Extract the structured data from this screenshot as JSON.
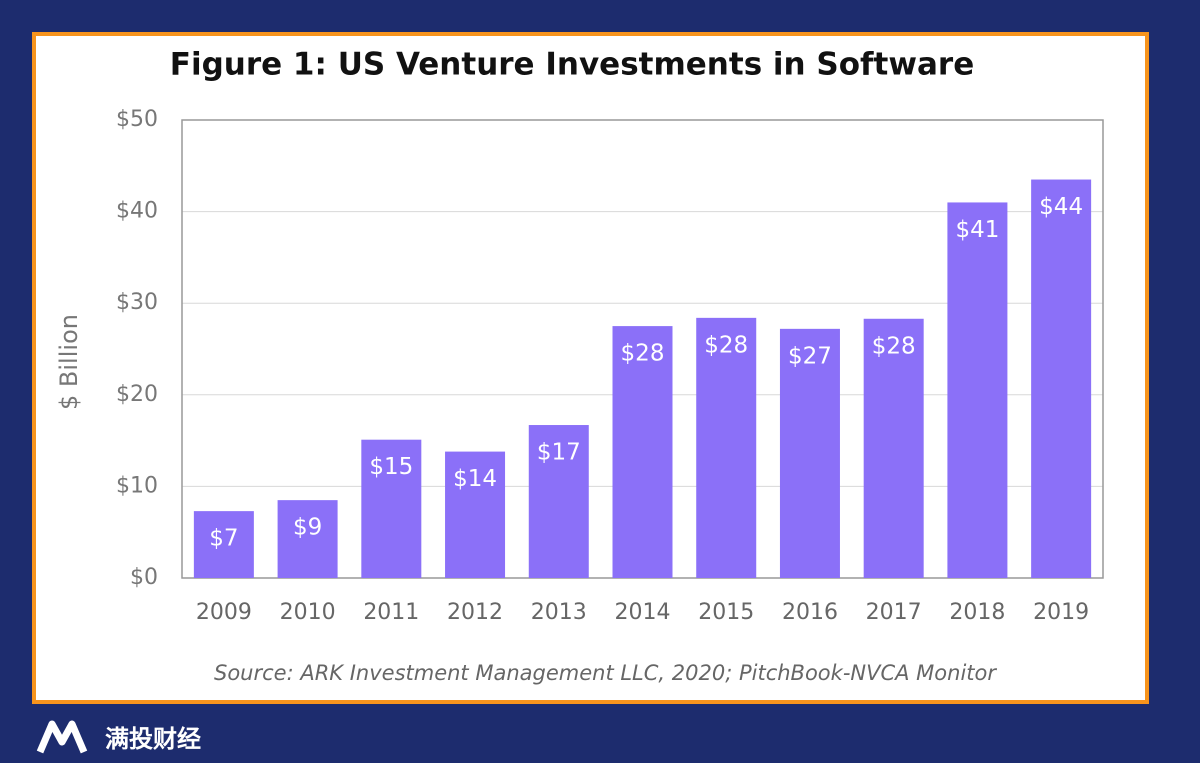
{
  "chart_data": {
    "type": "bar",
    "title": "Figure 1: US Venture Investments in Software",
    "y_label": "$ Billion",
    "categories": [
      "2009",
      "2010",
      "2011",
      "2012",
      "2013",
      "2014",
      "2015",
      "2016",
      "2017",
      "2018",
      "2019"
    ],
    "values": [
      7.3,
      8.5,
      15.1,
      13.8,
      16.7,
      27.5,
      28.4,
      27.2,
      28.3,
      41.0,
      43.5
    ],
    "value_labels": [
      "$7",
      "$9",
      "$15",
      "$14",
      "$17",
      "$28",
      "$28",
      "$27",
      "$28",
      "$41",
      "$44"
    ],
    "color": "#8b70f8",
    "ylim": [
      0,
      50
    ],
    "yticks": [
      {
        "value": 0,
        "label": "$0"
      },
      {
        "value": 10,
        "label": "$10"
      },
      {
        "value": 20,
        "label": "$20"
      },
      {
        "value": 30,
        "label": "$30"
      },
      {
        "value": 40,
        "label": "$40"
      },
      {
        "value": 50,
        "label": "$50"
      }
    ],
    "grid": true,
    "source": "Source: ARK Investment Management LLC, 2020; PitchBook-NVCA Monitor"
  },
  "watermark": "满投财经"
}
